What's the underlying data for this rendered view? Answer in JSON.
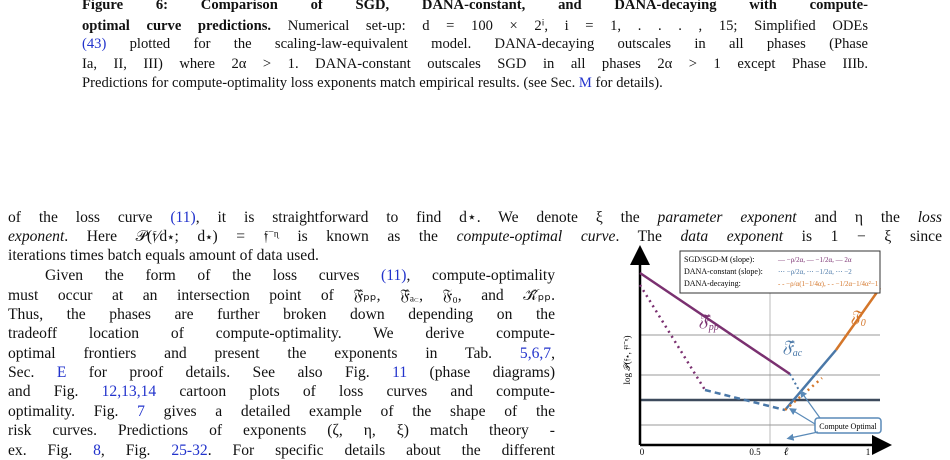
{
  "caption": {
    "lines": [
      [
        {
          "text": "Figure 6: Comparison of SGD, DANA-constant, and DANA-decaying with compute-",
          "bold": true
        }
      ],
      [
        {
          "text": "optimal curve predictions.",
          "bold": true
        },
        {
          "text": " Numerical set-up: d = 100 × 2ⁱ, i = 1, . . . , 15; Simplified ODEs"
        }
      ],
      [
        {
          "text": "(43)",
          "link": true
        },
        {
          "text": " plotted for the scaling-law-equivalent model. DANA-decaying outscales in all phases (Phase"
        }
      ],
      [
        {
          "text": "Ia, II, III) where 2α > 1. DANA-constant outscales SGD in all phases 2α > 1 except Phase IIIb."
        }
      ],
      [
        {
          "text": "Predictions for compute-optimality loss exponents match empirical results. (see Sec. "
        },
        {
          "text": "M",
          "link": true
        },
        {
          "text": " for details)."
        }
      ]
    ]
  },
  "paragraph": {
    "lines": [
      [
        {
          "text": "of the loss curve "
        },
        {
          "text": "(11)",
          "link": true
        },
        {
          "text": ", it is straightforward to find d⋆. We denote ξ the "
        },
        {
          "text": "parameter exponent",
          "italic": true
        },
        {
          "text": " and η the "
        },
        {
          "text": "loss",
          "italic": true
        }
      ],
      [
        {
          "text": "exponent",
          "italic": true
        },
        {
          "text": ". Here 𝒫(𝔣⁄d⋆; d⋆) = 𝔣⁻ᶯ is known as the "
        },
        {
          "text": "compute-optimal curve",
          "italic": true
        },
        {
          "text": ". The "
        },
        {
          "text": "data exponent",
          "italic": true
        },
        {
          "text": " is 1 − ξ since"
        }
      ],
      [
        {
          "text": "iterations times batch equals amount of data used."
        }
      ]
    ]
  },
  "column": {
    "lines": [
      [
        {
          "text": "Given the form of the loss curves "
        },
        {
          "text": "(11)",
          "link": true
        },
        {
          "text": ", compute-optimality"
        }
      ],
      [
        {
          "text": "must occur at an intersection point of 𝔉̂ₚₚ, 𝔉̂ₐ꜀, 𝔉₀, and 𝒦̂ₚₚ."
        }
      ],
      [
        {
          "text": "Thus, the phases are further broken down depending on the"
        }
      ],
      [
        {
          "text": "tradeoff location of compute-optimality. We derive compute-"
        }
      ],
      [
        {
          "text": "optimal frontiers and present the exponents in Tab. "
        },
        {
          "text": "5,6,7",
          "link": true
        },
        {
          "text": ","
        }
      ],
      [
        {
          "text": "Sec. "
        },
        {
          "text": "E",
          "link": true
        },
        {
          "text": " for proof details. See also Fig. "
        },
        {
          "text": "11",
          "link": true
        },
        {
          "text": " (phase diagrams)"
        }
      ],
      [
        {
          "text": "and Fig. "
        },
        {
          "text": "12,13,14",
          "link": true
        },
        {
          "text": " cartoon plots of loss curves and compute-"
        }
      ],
      [
        {
          "text": "optimality. Fig. "
        },
        {
          "text": "7",
          "link": true
        },
        {
          "text": " gives a detailed example of the shape of the"
        }
      ],
      [
        {
          "text": "risk curves. Predictions of exponents (ζ, η, ξ) match theory -"
        }
      ],
      [
        {
          "text": "ex. Fig. "
        },
        {
          "text": "8",
          "link": true
        },
        {
          "text": ", Fig. "
        },
        {
          "text": "25-32",
          "link": true
        },
        {
          "text": ". For specific details about the different"
        }
      ]
    ]
  },
  "figure": {
    "legend": [
      {
        "label": "SGD/SGD-M (slope):",
        "formula": "— −ρ/2α, — −1/2α, — 2α"
      },
      {
        "label": "DANA-constant (slope):",
        "formula": "⋯ −ρ/2α, ⋯ −1/2α, ⋯ −2"
      },
      {
        "label": "DANA-decaying:",
        "formula": "- - −ρ/α(1−1/4α), - - −1/2α−1/4α²−1"
      }
    ],
    "y_label": "log 𝒫(𝔣⋆, 𝔣¹⁻ᶯ)",
    "x_ticks": [
      "0",
      "0.5",
      "ℓ",
      "1"
    ],
    "curve_labels": [
      {
        "main": "𝔉̂",
        "sub": "pp"
      },
      {
        "main": "𝔉",
        "sub": "0"
      },
      {
        "main": "𝔉̂",
        "sub": "ac"
      }
    ],
    "callout": "Compute Optimal"
  }
}
